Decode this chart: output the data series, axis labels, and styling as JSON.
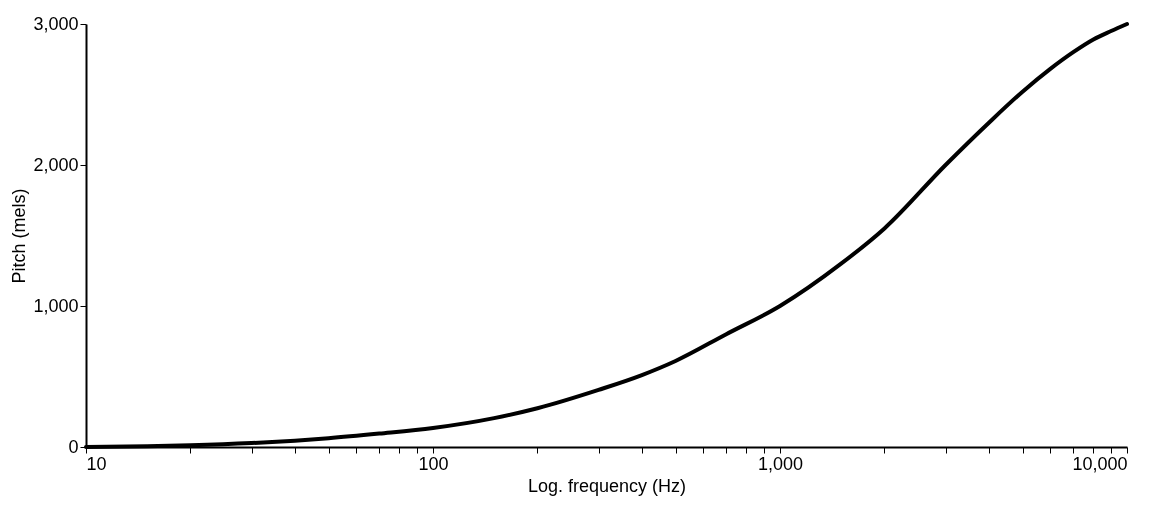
{
  "chart_data": {
    "type": "line",
    "xlabel": "Log. frequency (Hz)",
    "ylabel": "Pitch (mels)",
    "log": "x",
    "grid": false,
    "marker": "none",
    "line_style": "solid",
    "x": [
      10,
      15,
      20,
      30,
      40,
      50,
      70,
      100,
      150,
      200,
      300,
      400,
      500,
      700,
      1000,
      1500,
      2000,
      3000,
      4000,
      5000,
      6000,
      7000,
      8000,
      9000,
      10000
    ],
    "series": [
      {
        "color": "#000000",
        "values": [
          0,
          5,
          12,
          28,
          45,
          62,
          95,
          135,
          205,
          275,
          405,
          510,
          610,
          800,
          1000,
          1300,
          1550,
          2000,
          2300,
          2520,
          2680,
          2800,
          2890,
          2950,
          3000
        ]
      }
    ],
    "xlim": [
      10,
      10000
    ],
    "xticks": [
      {
        "value": 10,
        "label": "10"
      },
      {
        "value": 20,
        "label": null
      },
      {
        "value": 30,
        "label": null
      },
      {
        "value": 40,
        "label": null
      },
      {
        "value": 50,
        "label": null
      },
      {
        "value": 60,
        "label": null
      },
      {
        "value": 70,
        "label": null
      },
      {
        "value": 80,
        "label": null
      },
      {
        "value": 90,
        "label": null
      },
      {
        "value": 100,
        "label": "100"
      },
      {
        "value": 200,
        "label": null
      },
      {
        "value": 300,
        "label": null
      },
      {
        "value": 400,
        "label": null
      },
      {
        "value": 500,
        "label": null
      },
      {
        "value": 600,
        "label": null
      },
      {
        "value": 700,
        "label": null
      },
      {
        "value": 800,
        "label": null
      },
      {
        "value": 900,
        "label": null
      },
      {
        "value": 1000,
        "label": "1,000"
      },
      {
        "value": 2000,
        "label": null
      },
      {
        "value": 3000,
        "label": null
      },
      {
        "value": 4000,
        "label": null
      },
      {
        "value": 5000,
        "label": null
      },
      {
        "value": 6000,
        "label": null
      },
      {
        "value": 7000,
        "label": null
      },
      {
        "value": 8000,
        "label": null
      },
      {
        "value": 9000,
        "label": null
      },
      {
        "value": 10000,
        "label": "10,000"
      }
    ],
    "ylim": [
      0,
      3000
    ],
    "yticks": [
      0,
      {
        "value": 1000,
        "label": "1,000"
      },
      {
        "value": 2000,
        "label": "2,000"
      },
      {
        "value": 3000,
        "label": "3,000"
      }
    ]
  }
}
